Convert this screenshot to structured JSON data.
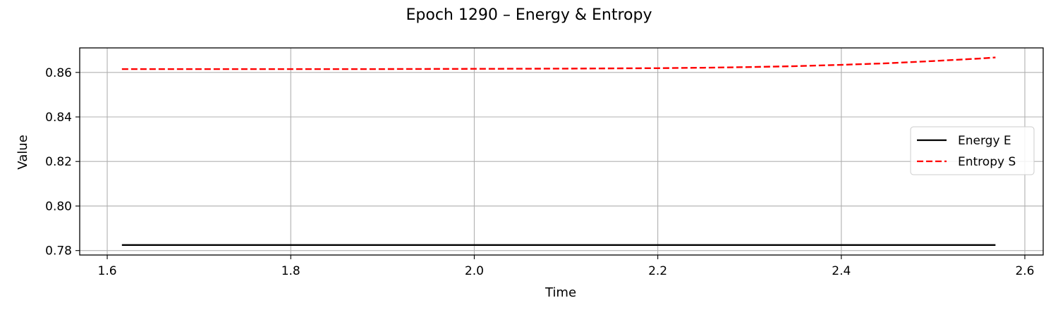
{
  "chart_data": {
    "type": "line",
    "title": "Epoch 1290 – Energy & Entropy",
    "xlabel": "Time",
    "ylabel": "Value",
    "xlim": [
      1.57,
      2.62
    ],
    "ylim": [
      0.778,
      0.871
    ],
    "xticks": [
      1.6,
      1.8,
      2.0,
      2.2,
      2.4,
      2.6
    ],
    "xtick_labels": [
      "1.6",
      "1.8",
      "2.0",
      "2.2",
      "2.4",
      "2.6"
    ],
    "yticks": [
      0.78,
      0.8,
      0.82,
      0.84,
      0.86
    ],
    "ytick_labels": [
      "0.78",
      "0.80",
      "0.82",
      "0.84",
      "0.86"
    ],
    "grid": true,
    "legend_position": "center-right",
    "series": [
      {
        "name": "Energy E",
        "color": "#000000",
        "dash": "solid",
        "x": [
          1.616,
          1.7,
          1.8,
          1.9,
          2.0,
          2.1,
          2.2,
          2.3,
          2.4,
          2.5,
          2.568
        ],
        "y": [
          0.7825,
          0.7825,
          0.7825,
          0.7825,
          0.7825,
          0.7825,
          0.7825,
          0.7825,
          0.7825,
          0.7825,
          0.7825
        ]
      },
      {
        "name": "Entropy S",
        "color": "#ff0000",
        "dash": "dashed",
        "x": [
          1.616,
          1.7,
          1.8,
          1.9,
          2.0,
          2.1,
          2.2,
          2.25,
          2.3,
          2.35,
          2.4,
          2.45,
          2.5,
          2.55,
          2.568
        ],
        "y": [
          0.8615,
          0.8615,
          0.8615,
          0.8615,
          0.8616,
          0.8617,
          0.8619,
          0.8621,
          0.8624,
          0.8628,
          0.8634,
          0.8641,
          0.8651,
          0.8662,
          0.8667
        ]
      }
    ]
  }
}
